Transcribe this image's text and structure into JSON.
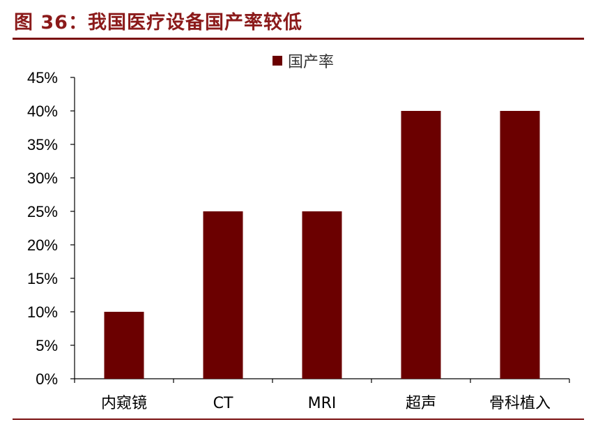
{
  "figure": {
    "title": "图 36：我国医疗设备国产率较低"
  },
  "chart_data": {
    "type": "bar",
    "categories": [
      "内窥镜",
      "CT",
      "MRI",
      "超声",
      "骨科植入"
    ],
    "series": [
      {
        "name": "国产率",
        "values": [
          10,
          25,
          25,
          40,
          40
        ],
        "color": "#6b0000"
      }
    ],
    "ylim": [
      0,
      45
    ],
    "yticks": [
      "0%",
      "5%",
      "10%",
      "15%",
      "20%",
      "25%",
      "30%",
      "35%",
      "40%",
      "45%"
    ],
    "ytick_values": [
      0,
      5,
      10,
      15,
      20,
      25,
      30,
      35,
      40,
      45
    ],
    "legend_position": "top-center",
    "grid": false
  }
}
